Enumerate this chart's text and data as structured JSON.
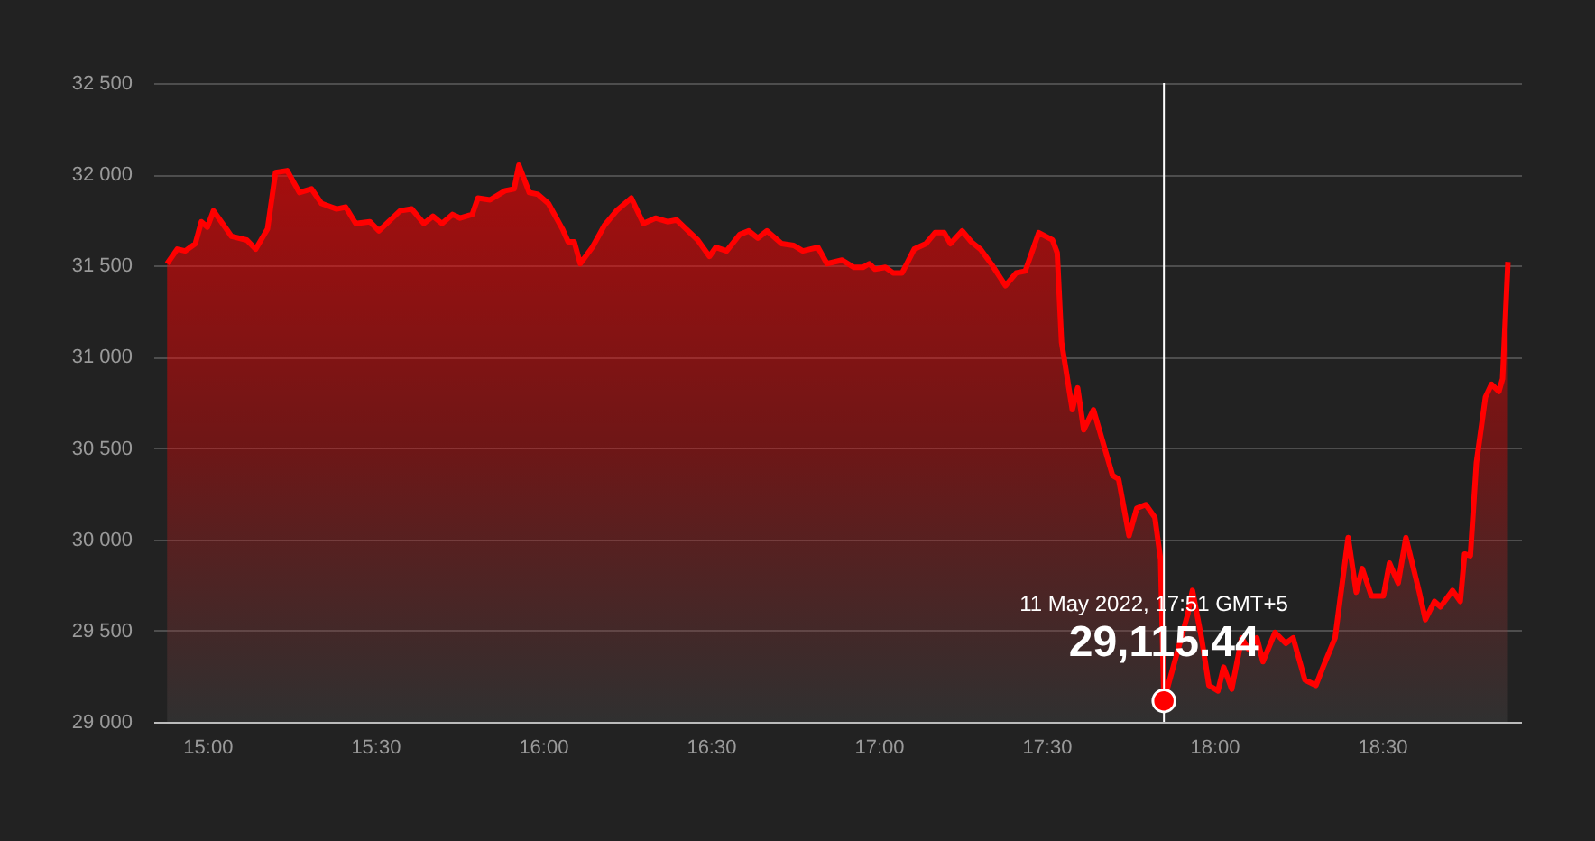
{
  "chart_data": {
    "type": "area",
    "grid": "y",
    "xlim": [
      14.839,
      18.914
    ],
    "ylim": [
      29000,
      32500
    ],
    "xticks": [
      {
        "value": 15,
        "label": "15:00"
      },
      {
        "value": 15.5,
        "label": "15:30"
      },
      {
        "value": 16,
        "label": "16:00"
      },
      {
        "value": 16.5,
        "label": "16:30"
      },
      {
        "value": 17,
        "label": "17:00"
      },
      {
        "value": 17.5,
        "label": "17:30"
      },
      {
        "value": 18,
        "label": "18:00"
      },
      {
        "value": 18.5,
        "label": "18:30"
      }
    ],
    "yticks": [
      {
        "value": 29000,
        "label": "29 000"
      },
      {
        "value": 29500,
        "label": "29 500"
      },
      {
        "value": 30000,
        "label": "30 000"
      },
      {
        "value": 30500,
        "label": "30 500"
      },
      {
        "value": 31000,
        "label": "31 000"
      },
      {
        "value": 31500,
        "label": "31 500"
      },
      {
        "value": 32000,
        "label": "32 000"
      },
      {
        "value": 32500,
        "label": "32 500"
      }
    ],
    "series": [
      {
        "color": "#ff0000",
        "marker": "none",
        "x": [
          14.88,
          14.91,
          14.934,
          14.964,
          14.982,
          15.0,
          15.018,
          15.072,
          15.117,
          15.144,
          15.179,
          15.203,
          15.238,
          15.274,
          15.31,
          15.34,
          15.385,
          15.412,
          15.442,
          15.484,
          15.511,
          15.574,
          15.609,
          15.645,
          15.672,
          15.699,
          15.73,
          15.753,
          15.789,
          15.806,
          15.842,
          15.887,
          15.914,
          15.928,
          15.959,
          15.985,
          16.016,
          16.058,
          16.075,
          16.093,
          16.111,
          16.147,
          16.183,
          16.219,
          16.263,
          16.299,
          16.335,
          16.371,
          16.398,
          16.461,
          16.496,
          16.515,
          16.547,
          16.586,
          16.613,
          16.64,
          16.667,
          16.711,
          16.747,
          16.774,
          16.819,
          16.846,
          16.891,
          16.926,
          16.953,
          16.972,
          16.989,
          17.02,
          17.043,
          17.07,
          17.106,
          17.141,
          17.168,
          17.195,
          17.214,
          17.249,
          17.276,
          17.303,
          17.339,
          17.378,
          17.41,
          17.437,
          17.477,
          17.518,
          17.532,
          17.545,
          17.577,
          17.593,
          17.611,
          17.64,
          17.697,
          17.715,
          17.746,
          17.769,
          17.796,
          17.823,
          17.84,
          17.85,
          17.921,
          17.935,
          17.962,
          17.984,
          18.011,
          18.028,
          18.052,
          18.082,
          18.101,
          18.127,
          18.145,
          18.181,
          18.213,
          18.235,
          18.27,
          18.303,
          18.324,
          18.36,
          18.399,
          18.423,
          18.441,
          18.468,
          18.504,
          18.522,
          18.548,
          18.571,
          18.611,
          18.629,
          18.656,
          18.674,
          18.71,
          18.733,
          18.746,
          18.763,
          18.781,
          18.808,
          18.826,
          18.848,
          18.859,
          18.875
        ],
        "values": [
          31510,
          31590,
          31580,
          31620,
          31740,
          31710,
          31800,
          31660,
          31640,
          31590,
          31700,
          32010,
          32020,
          31900,
          31920,
          31840,
          31810,
          31820,
          31730,
          31740,
          31690,
          31800,
          31810,
          31730,
          31770,
          31730,
          31780,
          31760,
          31780,
          31870,
          31860,
          31910,
          31920,
          32050,
          31900,
          31890,
          31840,
          31700,
          31630,
          31630,
          31510,
          31600,
          31720,
          31800,
          31870,
          31730,
          31760,
          31740,
          31750,
          31640,
          31550,
          31600,
          31580,
          31670,
          31690,
          31650,
          31690,
          31620,
          31610,
          31580,
          31600,
          31510,
          31530,
          31490,
          31490,
          31510,
          31480,
          31490,
          31460,
          31460,
          31590,
          31620,
          31680,
          31680,
          31620,
          31690,
          31630,
          31590,
          31500,
          31390,
          31460,
          31470,
          31680,
          31640,
          31570,
          31080,
          30710,
          30830,
          30600,
          30710,
          30350,
          30330,
          30020,
          30170,
          30190,
          30120,
          29890,
          29115.44,
          29590,
          29720,
          29460,
          29200,
          29170,
          29300,
          29180,
          29460,
          29400,
          29460,
          29330,
          29490,
          29430,
          29460,
          29230,
          29200,
          29300,
          29460,
          30010,
          29710,
          29840,
          29690,
          29690,
          29870,
          29760,
          30010,
          29710,
          29560,
          29660,
          29630,
          29720,
          29660,
          29920,
          29910,
          30420,
          30780,
          30850,
          30810,
          30880,
          31520
        ]
      },
      {
        "type": "scatter",
        "color": "#ff0000",
        "marker": "circle",
        "x": [
          17.85
        ],
        "values": [
          29115.44
        ]
      }
    ],
    "ref_lines": [
      {
        "axis": "x",
        "value": 17.85,
        "color": "#ffffff"
      }
    ],
    "annotations": [
      {
        "text": "11 May 2022, 17:51 GMT+5",
        "x": 17.82,
        "y": 29650
      },
      {
        "text": "29,115.44",
        "x": 17.85,
        "y": 29430
      }
    ]
  }
}
